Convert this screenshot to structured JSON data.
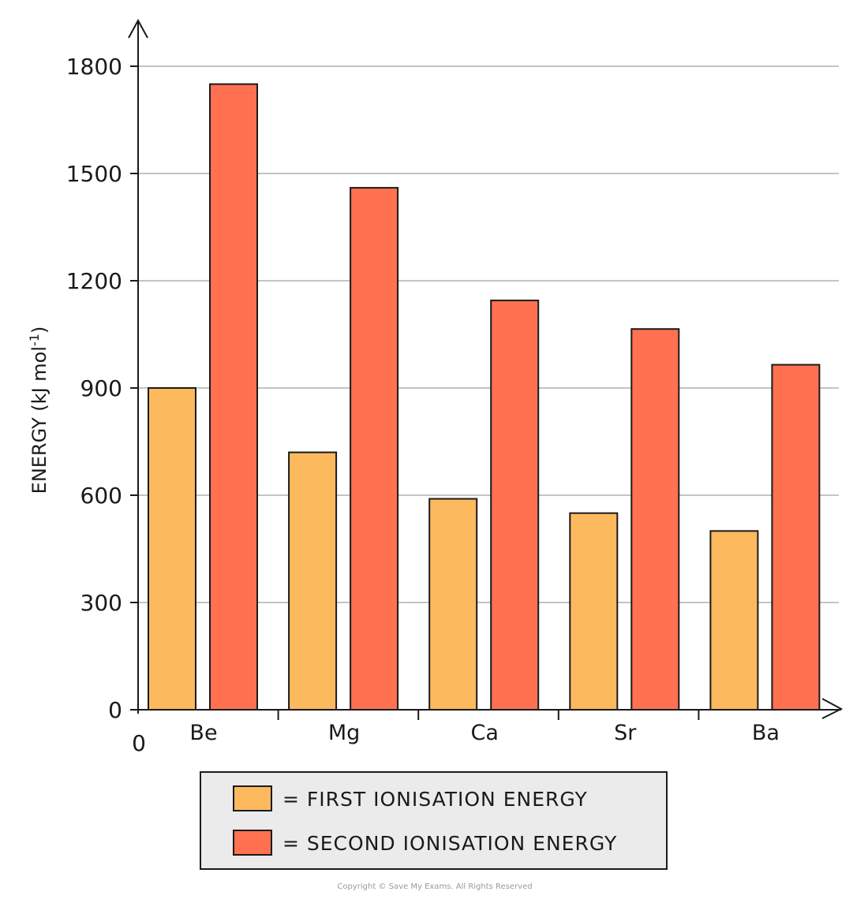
{
  "chart_data": {
    "type": "bar",
    "categories": [
      "Be",
      "Mg",
      "Ca",
      "Sr",
      "Ba"
    ],
    "series": [
      {
        "name": "FIRST  IONISATION  ENERGY",
        "color": "#FDB95E",
        "values": [
          900,
          720,
          590,
          550,
          500
        ]
      },
      {
        "name": "SECOND  IONISATION  ENERGY",
        "color": "#FF7150",
        "values": [
          1750,
          1460,
          1145,
          1065,
          965
        ]
      }
    ],
    "y_ticks": [
      0,
      300,
      600,
      900,
      1200,
      1500,
      1800
    ],
    "ylim": [
      0,
      1800
    ],
    "ylabel": "ENERGY  (kJ mol",
    "ylabel_sup": "-1",
    "ylabel_close": ")",
    "origin_label": "0",
    "grid": true,
    "legend_position": "bottom",
    "copyright": "Copyright © Save My Exams. All Rights Reserved"
  }
}
